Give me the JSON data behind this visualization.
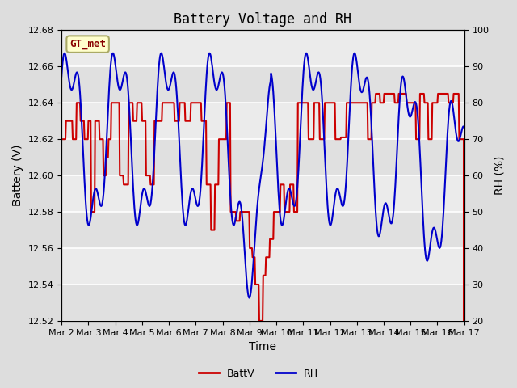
{
  "title": "Battery Voltage and RH",
  "xlabel": "Time",
  "ylabel_left": "Battery (V)",
  "ylabel_right": "RH (%)",
  "left_ylim": [
    12.52,
    12.68
  ],
  "right_ylim": [
    20,
    100
  ],
  "left_yticks": [
    12.52,
    12.54,
    12.56,
    12.58,
    12.6,
    12.62,
    12.64,
    12.66,
    12.68
  ],
  "right_yticks": [
    20,
    30,
    40,
    50,
    60,
    70,
    80,
    90,
    100
  ],
  "xtick_labels": [
    "Mar 2",
    "Mar 3",
    "Mar 4",
    "Mar 5",
    "Mar 6",
    "Mar 7",
    "Mar 8",
    "Mar 9",
    "Mar 10",
    "Mar 11",
    "Mar 12",
    "Mar 13",
    "Mar 14",
    "Mar 15",
    "Mar 16",
    "Mar 17"
  ],
  "annotation_text": "GT_met",
  "annotation_bg": "#ffffcc",
  "annotation_border": "#aaaa66",
  "annotation_text_color": "#880000",
  "line_batt_color": "#cc0000",
  "line_rh_color": "#0000cc",
  "bg_color": "#dddddd",
  "inner_bg_color": "#e8e8e8",
  "title_fontsize": 12,
  "axis_label_fontsize": 10,
  "tick_fontsize": 8,
  "legend_fontsize": 9,
  "line_width": 1.5
}
